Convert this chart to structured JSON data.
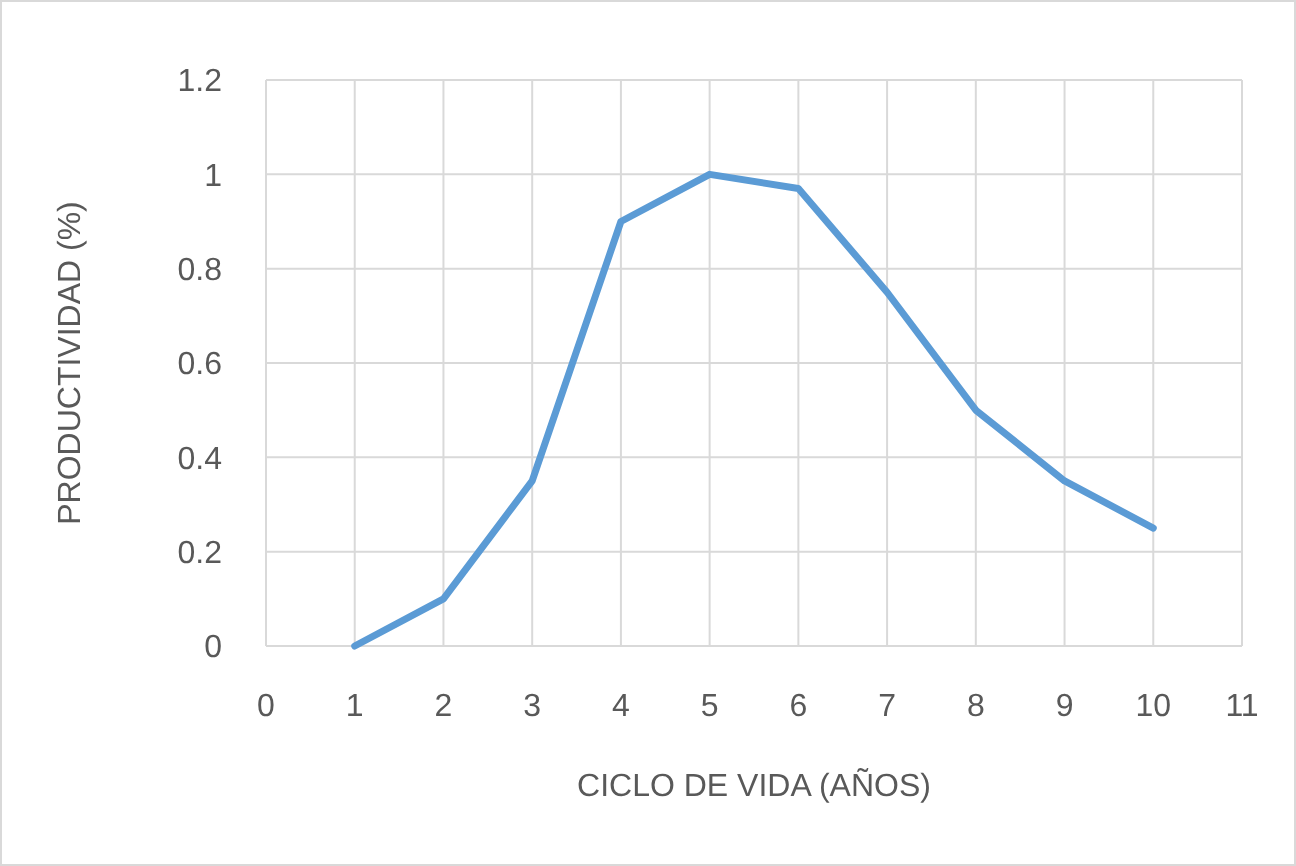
{
  "chart_data": {
    "type": "line",
    "xlabel": "CICLO DE VIDA (AÑOS)",
    "ylabel": "PRODUCTIVIDAD (%)",
    "x": [
      1,
      2,
      3,
      4,
      5,
      6,
      7,
      8,
      9,
      10
    ],
    "series": [
      {
        "color": "#5b9bd5",
        "values": [
          0,
          0.1,
          0.35,
          0.9,
          1,
          0.97,
          0.75,
          0.5,
          0.35,
          0.25
        ]
      }
    ],
    "xlim": [
      0,
      11
    ],
    "xticks": [
      0,
      1,
      2,
      3,
      4,
      5,
      6,
      7,
      8,
      9,
      10,
      11
    ],
    "ylim": [
      0,
      1.2
    ],
    "yticks": [
      0,
      0.2,
      0.4,
      0.6,
      0.8,
      1,
      1.2
    ],
    "grid": true,
    "marker": "none",
    "line_style": "solid"
  }
}
